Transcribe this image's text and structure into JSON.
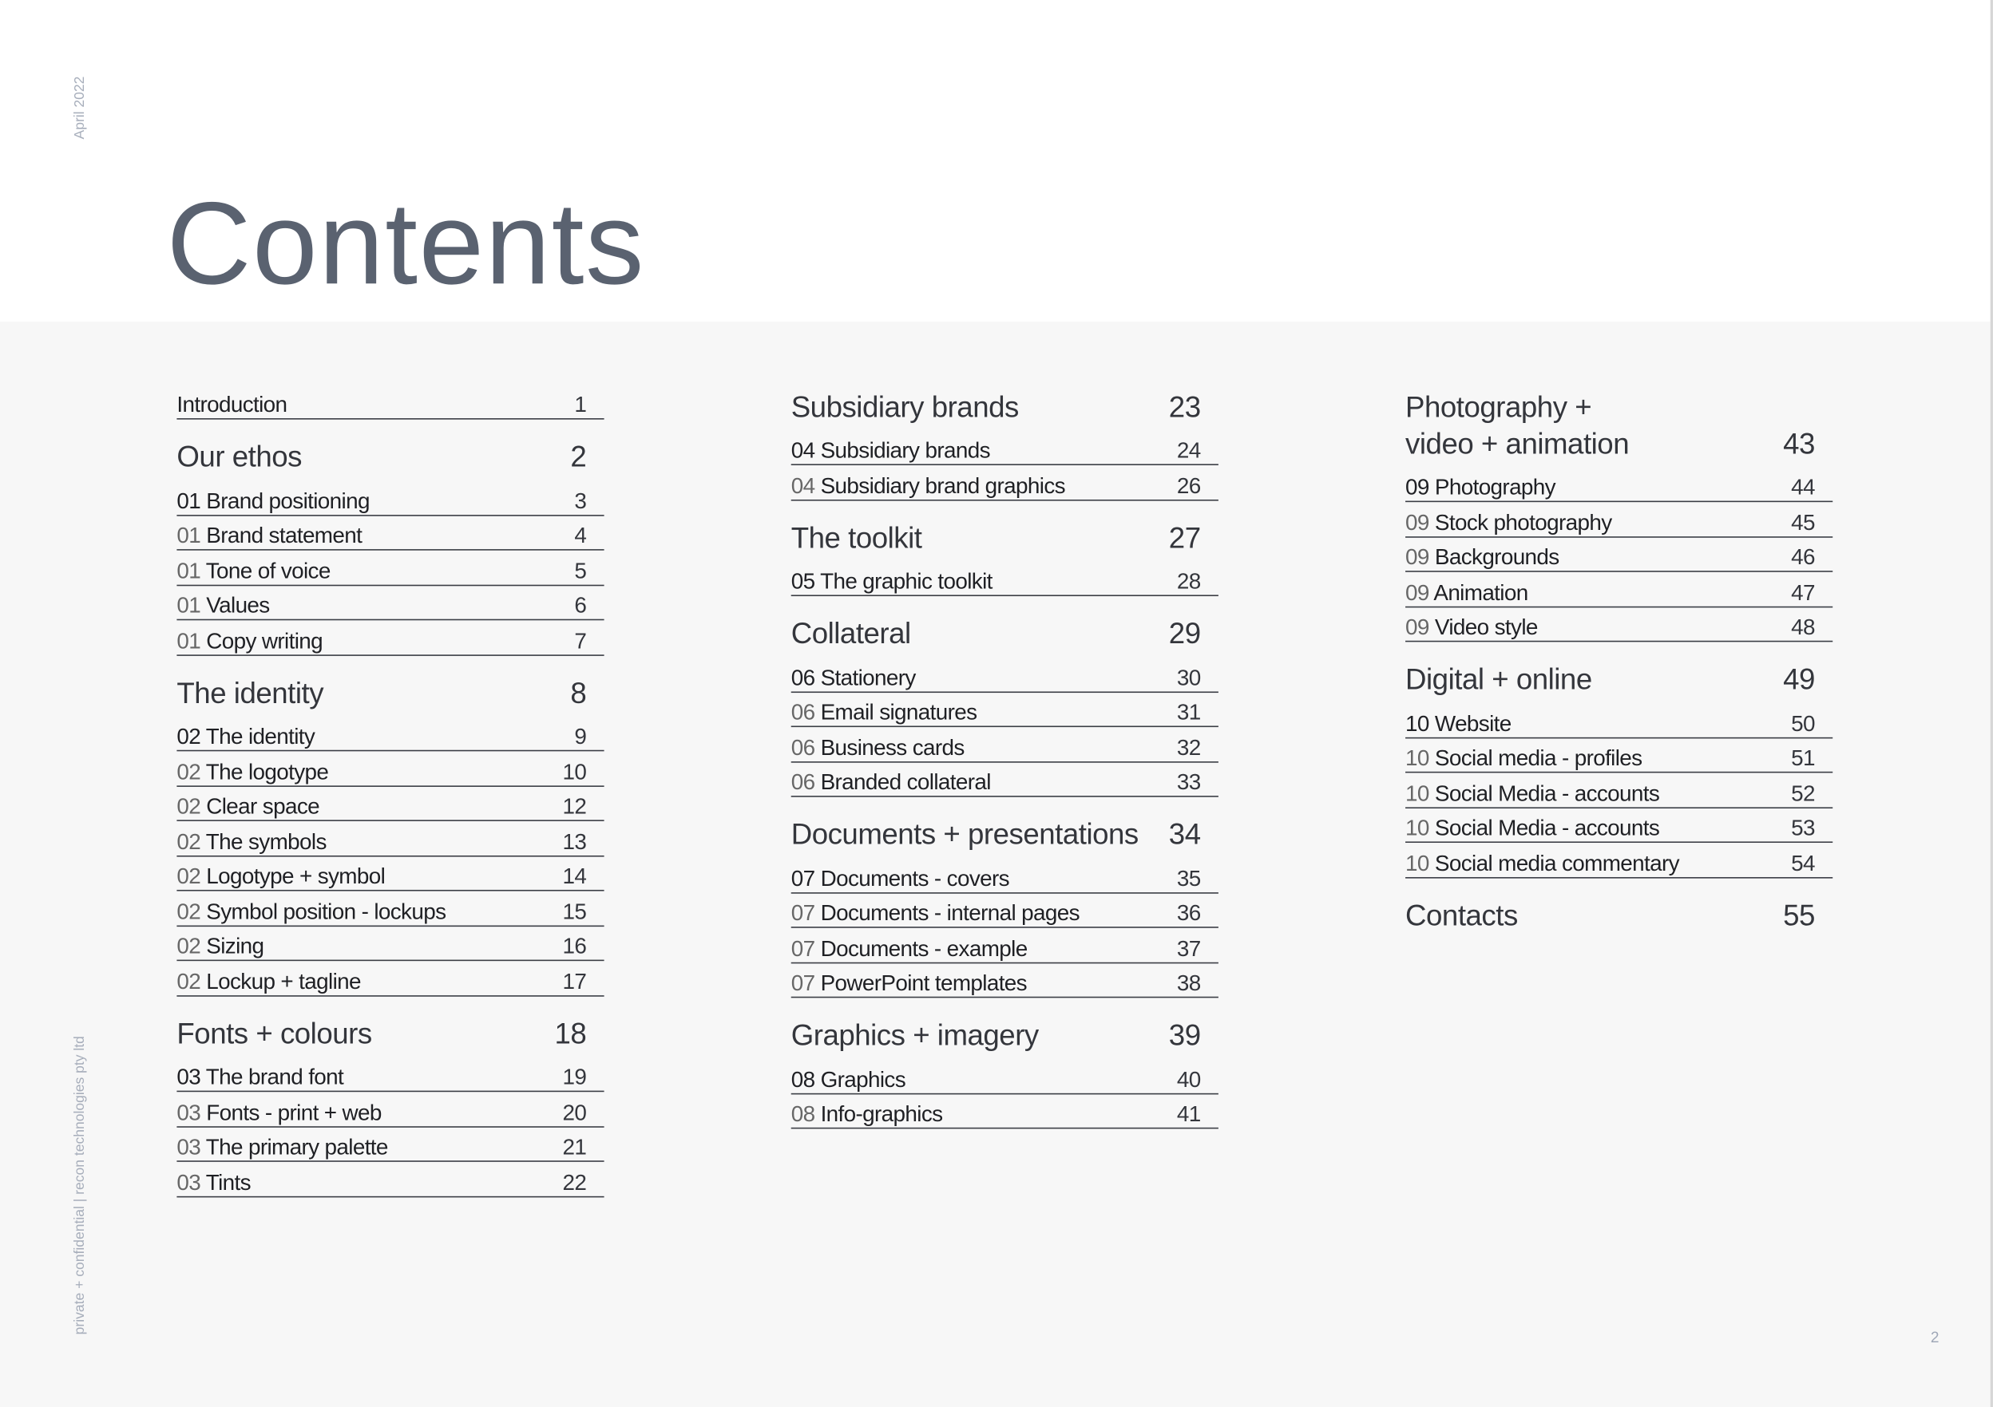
{
  "page": {
    "title": "Contents",
    "date": "April 2022",
    "footer": "private + confidential | recon technologies pty ltd",
    "page_number": "2",
    "colors": {
      "title": "#5a6270",
      "side_text": "#a7aebb",
      "background": "#f7f7f7",
      "header_background": "#ffffff"
    }
  },
  "columns": [
    {
      "blocks": [
        {
          "type": "item",
          "prefix": "",
          "label": "Introduction",
          "page": "1"
        },
        {
          "type": "heading",
          "label": "Our ethos",
          "page": "2"
        },
        {
          "type": "item",
          "prefix": "01",
          "label": "Brand positioning",
          "page": "3",
          "first": true
        },
        {
          "type": "item",
          "prefix": "01",
          "label": "Brand statement",
          "page": "4"
        },
        {
          "type": "item",
          "prefix": "01",
          "label": "Tone of voice",
          "page": "5"
        },
        {
          "type": "item",
          "prefix": "01",
          "label": "Values",
          "page": "6"
        },
        {
          "type": "item",
          "prefix": "01",
          "label": "Copy writing",
          "page": "7"
        },
        {
          "type": "heading",
          "label": "The identity",
          "page": "8"
        },
        {
          "type": "item",
          "prefix": "02",
          "label": "The identity",
          "page": "9",
          "first": true
        },
        {
          "type": "item",
          "prefix": "02",
          "label": "The logotype",
          "page": "10"
        },
        {
          "type": "item",
          "prefix": "02",
          "label": "Clear space",
          "page": "12"
        },
        {
          "type": "item",
          "prefix": "02",
          "label": "The symbols",
          "page": "13"
        },
        {
          "type": "item",
          "prefix": "02",
          "label": "Logotype + symbol",
          "page": "14"
        },
        {
          "type": "item",
          "prefix": "02",
          "label": "Symbol position - lockups",
          "page": "15"
        },
        {
          "type": "item",
          "prefix": "02",
          "label": "Sizing",
          "page": "16"
        },
        {
          "type": "item",
          "prefix": "02",
          "label": "Lockup + tagline",
          "page": "17"
        },
        {
          "type": "heading",
          "label": "Fonts + colours",
          "page": "18"
        },
        {
          "type": "item",
          "prefix": "03",
          "label": "The brand font",
          "page": "19",
          "first": true
        },
        {
          "type": "item",
          "prefix": "03",
          "label": "Fonts - print + web",
          "page": "20"
        },
        {
          "type": "item",
          "prefix": "03",
          "label": "The primary palette",
          "page": "21"
        },
        {
          "type": "item",
          "prefix": "03",
          "label": "Tints",
          "page": "22"
        }
      ]
    },
    {
      "blocks": [
        {
          "type": "heading",
          "label": "Subsidiary brands",
          "page": "23"
        },
        {
          "type": "item",
          "prefix": "04",
          "label": "Subsidiary brands",
          "page": "24",
          "first": true
        },
        {
          "type": "item",
          "prefix": "04",
          "label": "Subsidiary brand graphics",
          "page": "26"
        },
        {
          "type": "heading",
          "label": "The toolkit",
          "page": "27"
        },
        {
          "type": "item",
          "prefix": "05",
          "label": "The graphic toolkit",
          "page": "28",
          "first": true
        },
        {
          "type": "heading",
          "label": "Collateral",
          "page": "29"
        },
        {
          "type": "item",
          "prefix": "06",
          "label": "Stationery",
          "page": "30",
          "first": true
        },
        {
          "type": "item",
          "prefix": "06",
          "label": "Email signatures",
          "page": "31"
        },
        {
          "type": "item",
          "prefix": "06",
          "label": "Business cards",
          "page": "32"
        },
        {
          "type": "item",
          "prefix": "06",
          "label": "Branded collateral",
          "page": "33"
        },
        {
          "type": "heading",
          "label": "Documents + presentations",
          "page": "34"
        },
        {
          "type": "item",
          "prefix": "07",
          "label": "Documents - covers",
          "page": "35",
          "first": true
        },
        {
          "type": "item",
          "prefix": "07",
          "label": "Documents - internal pages",
          "page": "36"
        },
        {
          "type": "item",
          "prefix": "07",
          "label": "Documents - example",
          "page": "37"
        },
        {
          "type": "item",
          "prefix": "07",
          "label": "PowerPoint templates",
          "page": "38"
        },
        {
          "type": "heading",
          "label": "Graphics + imagery",
          "page": "39"
        },
        {
          "type": "item",
          "prefix": "08",
          "label": "Graphics",
          "page": "40",
          "first": true
        },
        {
          "type": "item",
          "prefix": "08",
          "label": "Info-graphics",
          "page": "41"
        }
      ]
    },
    {
      "blocks": [
        {
          "type": "heading",
          "label": "Photography +",
          "label2": "video + animation",
          "page": "43"
        },
        {
          "type": "item",
          "prefix": "09",
          "label": "Photography",
          "page": "44",
          "first": true
        },
        {
          "type": "item",
          "prefix": "09",
          "label": "Stock photography",
          "page": "45"
        },
        {
          "type": "item",
          "prefix": "09",
          "label": "Backgrounds",
          "page": "46"
        },
        {
          "type": "item",
          "prefix": "09",
          "label": "Animation",
          "page": "47"
        },
        {
          "type": "item",
          "prefix": "09",
          "label": "Video style",
          "page": "48"
        },
        {
          "type": "heading",
          "label": "Digital + online",
          "page": "49"
        },
        {
          "type": "item",
          "prefix": "10",
          "label": "Website",
          "page": "50",
          "first": true
        },
        {
          "type": "item",
          "prefix": "10",
          "label": "Social media - profiles",
          "page": "51"
        },
        {
          "type": "item",
          "prefix": "10",
          "label": "Social Media - accounts",
          "page": "52"
        },
        {
          "type": "item",
          "prefix": "10",
          "label": "Social Media - accounts",
          "page": "53"
        },
        {
          "type": "item",
          "prefix": "10",
          "label": "Social media commentary",
          "page": "54"
        },
        {
          "type": "heading",
          "label": "Contacts",
          "page": "55"
        }
      ]
    }
  ]
}
